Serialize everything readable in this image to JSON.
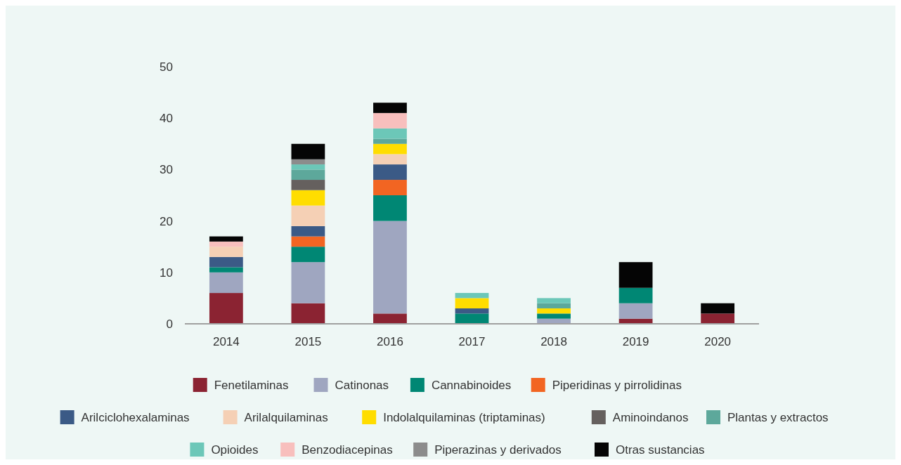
{
  "chart_data": {
    "type": "bar",
    "stacked": true,
    "categories": [
      "2014",
      "2015",
      "2016",
      "2017",
      "2018",
      "2019",
      "2020"
    ],
    "ylim": [
      0,
      50
    ],
    "yticks": [
      0,
      10,
      20,
      30,
      40,
      50
    ],
    "grid": false,
    "legend": "bottom",
    "series": [
      {
        "name": "Fenetilaminas",
        "color": "#8b2332",
        "values": [
          6,
          4,
          2,
          0,
          0,
          1,
          2
        ]
      },
      {
        "name": "Catinonas",
        "color": "#9fa6c0",
        "values": [
          4,
          8,
          18,
          0,
          1,
          3,
          0
        ]
      },
      {
        "name": "Cannabinoides",
        "color": "#008774",
        "values": [
          1,
          3,
          5,
          2,
          1,
          3,
          0
        ]
      },
      {
        "name": "Piperidinas y pirrolidinas",
        "color": "#f26522",
        "values": [
          0,
          2,
          3,
          0,
          0,
          0,
          0
        ]
      },
      {
        "name": "Arilciclohexalaminas",
        "color": "#3b5a86",
        "values": [
          2,
          2,
          3,
          1,
          0,
          0,
          0
        ]
      },
      {
        "name": "Arilalquilaminas",
        "color": "#f5d0b5",
        "values": [
          2,
          4,
          2,
          0,
          0,
          0,
          0
        ]
      },
      {
        "name": "Indolalquilaminas (triptaminas)",
        "color": "#ffdd00",
        "values": [
          0,
          3,
          2,
          2,
          1,
          0,
          0
        ]
      },
      {
        "name": "Aminoindanos",
        "color": "#65605e",
        "values": [
          0,
          2,
          0,
          0,
          0,
          0,
          0
        ]
      },
      {
        "name": "Plantas y extractos",
        "color": "#5da89b",
        "values": [
          0,
          2,
          1,
          0,
          1,
          0,
          0
        ]
      },
      {
        "name": "Opioides",
        "color": "#6cc7b8",
        "values": [
          0,
          1,
          2,
          1,
          1,
          0,
          0
        ]
      },
      {
        "name": "Benzodiacepinas",
        "color": "#f8bfbd",
        "values": [
          1,
          0,
          3,
          0,
          0,
          0,
          0
        ]
      },
      {
        "name": "Piperazinas y derivados",
        "color": "#8c8c8c",
        "values": [
          0,
          1,
          0,
          0,
          0,
          0,
          0
        ]
      },
      {
        "name": "Otras sustancias",
        "color": "#050505",
        "values": [
          1,
          3,
          2,
          0,
          0,
          5,
          2
        ]
      }
    ]
  }
}
